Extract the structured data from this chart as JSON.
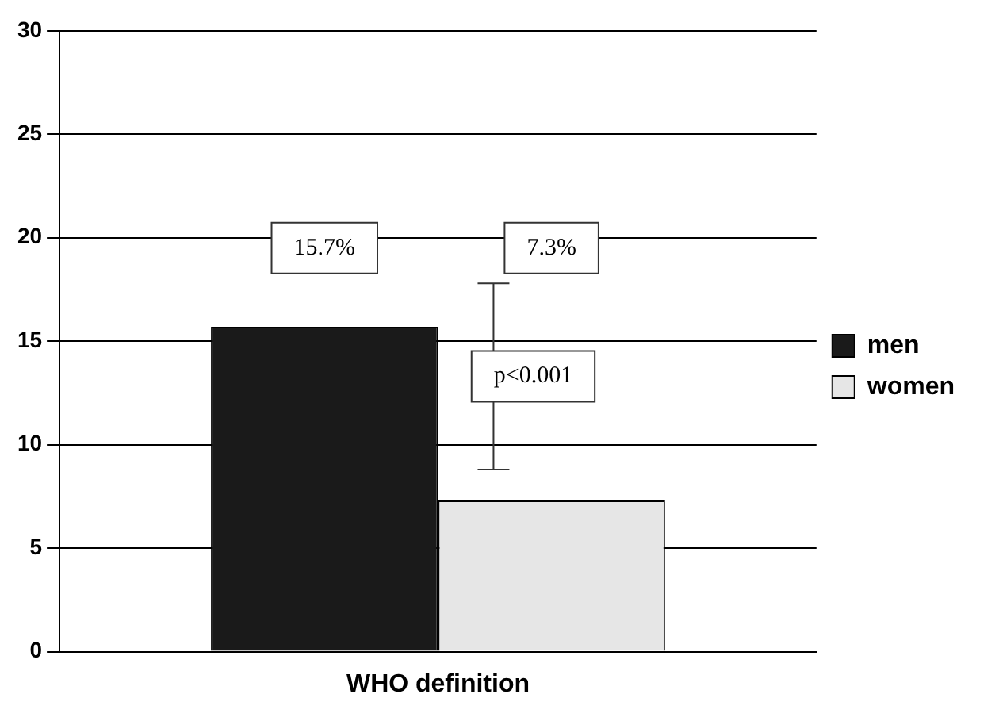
{
  "chart_data": {
    "type": "bar",
    "categories": [
      "WHO definition"
    ],
    "series": [
      {
        "name": "men",
        "color": "#1a1a1a",
        "values": [
          15.7
        ]
      },
      {
        "name": "women",
        "color": "#e6e6e6",
        "values": [
          7.3
        ]
      }
    ],
    "value_labels": [
      [
        "15.7%"
      ],
      [
        "7.3%"
      ]
    ],
    "annotations": [
      "p<0.001"
    ],
    "ylim": [
      0,
      30
    ],
    "yticks": [
      0,
      5,
      10,
      15,
      20,
      25,
      30
    ],
    "grid": "y",
    "legend": "right"
  }
}
